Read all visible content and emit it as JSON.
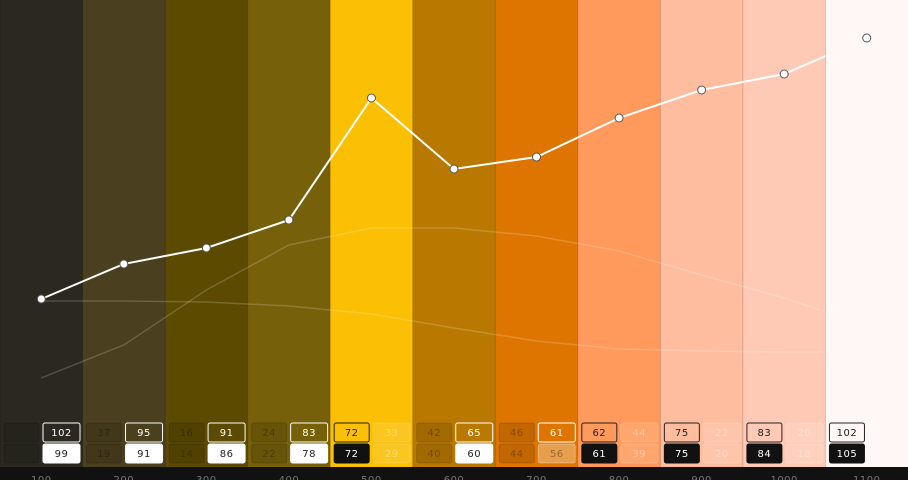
{
  "columns": [
    {
      "label": "100",
      "color": "#2a2820",
      "top": [
        null,
        "102"
      ],
      "bottom": [
        null,
        "99"
      ],
      "styles": [
        "dim",
        "ol-w",
        "dim",
        "fl-w"
      ]
    },
    {
      "label": "200",
      "color": "#4a3f1e",
      "top": [
        "37",
        "95"
      ],
      "bottom": [
        "19",
        "91"
      ],
      "styles": [
        "dim",
        "ol-w",
        "dim",
        "fl-w"
      ]
    },
    {
      "label": "300",
      "color": "#5c4a00",
      "top": [
        "16",
        "91"
      ],
      "bottom": [
        "14",
        "86"
      ],
      "styles": [
        "dim",
        "ol-w",
        "dim",
        "fl-w"
      ]
    },
    {
      "label": "400",
      "color": "#76600a",
      "top": [
        "24",
        "83"
      ],
      "bottom": [
        "22",
        "78"
      ],
      "styles": [
        "dim",
        "ol-w",
        "dim",
        "fl-w"
      ]
    },
    {
      "label": "500",
      "color": "#fbbf03",
      "top": [
        "72",
        "33"
      ],
      "bottom": [
        "72",
        "29"
      ],
      "styles": [
        "ol-d",
        "dim-l",
        "fl-d",
        "dim-l"
      ]
    },
    {
      "label": "600",
      "color": "#b97800",
      "top": [
        "42",
        "65"
      ],
      "bottom": [
        "40",
        "60"
      ],
      "styles": [
        "dim",
        "ol-w",
        "dim",
        "fl-w"
      ]
    },
    {
      "label": "700",
      "color": "#dd7500",
      "top": [
        "46",
        "61"
      ],
      "bottom": [
        "44",
        "56"
      ],
      "styles": [
        "dim",
        "ol-w",
        "dim",
        "fl-o"
      ]
    },
    {
      "label": "800",
      "color": "#ff9a5c",
      "top": [
        "62",
        "44"
      ],
      "bottom": [
        "61",
        "39"
      ],
      "styles": [
        "ol-d",
        "dim-l",
        "fl-d",
        "dim-l"
      ]
    },
    {
      "label": "900",
      "color": "#ffbda0",
      "top": [
        "75",
        "22"
      ],
      "bottom": [
        "75",
        "20"
      ],
      "styles": [
        "ol-d",
        "dim-l",
        "fl-d",
        "dim-l"
      ]
    },
    {
      "label": "1000",
      "color": "#ffcab5",
      "top": [
        "83",
        "20"
      ],
      "bottom": [
        "84",
        "18"
      ],
      "styles": [
        "ol-d",
        "dim-l",
        "fl-d",
        "dim-l"
      ]
    },
    {
      "label": "1100",
      "color": "#fff8f6",
      "top": [
        "102",
        null
      ],
      "bottom": [
        "105",
        null
      ],
      "styles": [
        "ol-d",
        "none",
        "fl-d",
        "none"
      ]
    }
  ],
  "series": [
    {
      "color": "#ffffff",
      "opacity": 0.18,
      "values": [
        15.5,
        23.75,
        37.5,
        48.75,
        53,
        53,
        51,
        47.25,
        41.25,
        35.5,
        28.5
      ]
    },
    {
      "color": "#ffffff",
      "opacity": 0.18,
      "values": [
        34.75,
        34.75,
        34.5,
        33.5,
        31.5,
        28,
        24.75,
        22.75,
        22.25,
        22,
        22
      ]
    },
    {
      "color": "#ffffff",
      "opacity": 1,
      "markers": true,
      "values": [
        35.25,
        44,
        48,
        55,
        85.5,
        67.75,
        70.75,
        80.5,
        87.5,
        91.5,
        100.5
      ]
    }
  ]
}
